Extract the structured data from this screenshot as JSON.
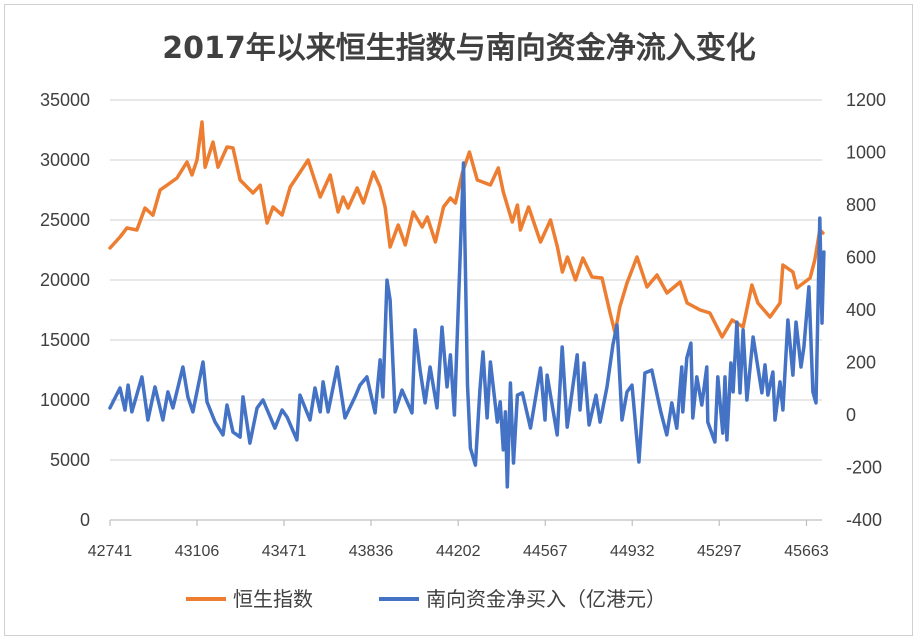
{
  "chart_data": {
    "type": "line",
    "title": "2017年以来恒生指数与南向资金净流入变化",
    "xlabel": "",
    "ylabel": "",
    "x_ticks": [
      "42741",
      "43106",
      "43471",
      "43836",
      "44202",
      "44567",
      "44932",
      "45297",
      "45663"
    ],
    "xlim": [
      42741,
      45728
    ],
    "y_left": {
      "ticks": [
        "0",
        "5000",
        "10000",
        "15000",
        "20000",
        "25000",
        "30000",
        "35000"
      ],
      "ylim": [
        0,
        35000
      ]
    },
    "y_right": {
      "ticks": [
        "-400",
        "-200",
        "0",
        "200",
        "400",
        "600",
        "800",
        "1000",
        "1200"
      ],
      "ylim": [
        -400,
        1200
      ]
    },
    "grid": true,
    "legend_position": "bottom",
    "series": [
      {
        "name": "恒生指数",
        "axis": "left",
        "color": "#ED7D31",
        "points": [
          [
            42741,
            22670
          ],
          [
            42783,
            23580
          ],
          [
            42812,
            24330
          ],
          [
            42854,
            24170
          ],
          [
            42888,
            26000
          ],
          [
            42921,
            25400
          ],
          [
            42951,
            27500
          ],
          [
            42980,
            27900
          ],
          [
            43022,
            28500
          ],
          [
            43064,
            29830
          ],
          [
            43085,
            28750
          ],
          [
            43106,
            30000
          ],
          [
            43127,
            33170
          ],
          [
            43140,
            29400
          ],
          [
            43173,
            31500
          ],
          [
            43194,
            29400
          ],
          [
            43232,
            31080
          ],
          [
            43257,
            31000
          ],
          [
            43287,
            28330
          ],
          [
            43341,
            27250
          ],
          [
            43371,
            27900
          ],
          [
            43400,
            24750
          ],
          [
            43425,
            26080
          ],
          [
            43463,
            25420
          ],
          [
            43497,
            27750
          ],
          [
            43539,
            29000
          ],
          [
            43572,
            30000
          ],
          [
            43623,
            26920
          ],
          [
            43665,
            28750
          ],
          [
            43698,
            25670
          ],
          [
            43719,
            26920
          ],
          [
            43740,
            26000
          ],
          [
            43778,
            27670
          ],
          [
            43804,
            26420
          ],
          [
            43846,
            29000
          ],
          [
            43874,
            27750
          ],
          [
            43895,
            26080
          ],
          [
            43916,
            22750
          ],
          [
            43950,
            24580
          ],
          [
            43980,
            22920
          ],
          [
            44013,
            25670
          ],
          [
            44051,
            24420
          ],
          [
            44072,
            25250
          ],
          [
            44106,
            23170
          ],
          [
            44140,
            26080
          ],
          [
            44169,
            26830
          ],
          [
            44190,
            26420
          ],
          [
            44219,
            28920
          ],
          [
            44249,
            30670
          ],
          [
            44282,
            28330
          ],
          [
            44337,
            27920
          ],
          [
            44370,
            29330
          ],
          [
            44391,
            27330
          ],
          [
            44429,
            24830
          ],
          [
            44450,
            26250
          ],
          [
            44463,
            24170
          ],
          [
            44497,
            26080
          ],
          [
            44547,
            23170
          ],
          [
            44589,
            25000
          ],
          [
            44618,
            22750
          ],
          [
            44639,
            20670
          ],
          [
            44660,
            21920
          ],
          [
            44694,
            20000
          ],
          [
            44725,
            21830
          ],
          [
            44763,
            20250
          ],
          [
            44805,
            20170
          ],
          [
            44839,
            17250
          ],
          [
            44860,
            15580
          ],
          [
            44880,
            17750
          ],
          [
            44910,
            19750
          ],
          [
            44952,
            21920
          ],
          [
            44994,
            19420
          ],
          [
            45036,
            20420
          ],
          [
            45078,
            18920
          ],
          [
            45133,
            19830
          ],
          [
            45162,
            18080
          ],
          [
            45217,
            17500
          ],
          [
            45258,
            17250
          ],
          [
            45309,
            15250
          ],
          [
            45351,
            16670
          ],
          [
            45397,
            16080
          ],
          [
            45434,
            19580
          ],
          [
            45459,
            18080
          ],
          [
            45510,
            16920
          ],
          [
            45552,
            18080
          ],
          [
            45564,
            21250
          ],
          [
            45606,
            20670
          ],
          [
            45623,
            19330
          ],
          [
            45678,
            20170
          ],
          [
            45698,
            21670
          ],
          [
            45719,
            24170
          ],
          [
            45732,
            23920
          ]
        ]
      },
      {
        "name": "南向资金净买入（亿港元）",
        "axis": "right",
        "color": "#4472C4",
        "points": [
          [
            42741,
            27
          ],
          [
            42783,
            103
          ],
          [
            42804,
            19
          ],
          [
            42817,
            114
          ],
          [
            42833,
            12
          ],
          [
            42875,
            145
          ],
          [
            42900,
            -19
          ],
          [
            42930,
            107
          ],
          [
            42963,
            -19
          ],
          [
            42984,
            88
          ],
          [
            43005,
            27
          ],
          [
            43047,
            183
          ],
          [
            43068,
            69
          ],
          [
            43089,
            12
          ],
          [
            43131,
            202
          ],
          [
            43148,
            50
          ],
          [
            43182,
            -27
          ],
          [
            43215,
            -76
          ],
          [
            43232,
            38
          ],
          [
            43257,
            -65
          ],
          [
            43287,
            -84
          ],
          [
            43299,
            69
          ],
          [
            43328,
            -107
          ],
          [
            43358,
            27
          ],
          [
            43383,
            57
          ],
          [
            43433,
            -50
          ],
          [
            43463,
            19
          ],
          [
            43484,
            -8
          ],
          [
            43525,
            -95
          ],
          [
            43538,
            76
          ],
          [
            43580,
            -19
          ],
          [
            43601,
            103
          ],
          [
            43623,
            12
          ],
          [
            43635,
            126
          ],
          [
            43656,
            12
          ],
          [
            43694,
            183
          ],
          [
            43727,
            -11
          ],
          [
            43769,
            69
          ],
          [
            43790,
            114
          ],
          [
            43819,
            145
          ],
          [
            43853,
            8
          ],
          [
            43874,
            210
          ],
          [
            43886,
            69
          ],
          [
            43903,
            514
          ],
          [
            43916,
            438
          ],
          [
            43937,
            12
          ],
          [
            43966,
            95
          ],
          [
            44008,
            8
          ],
          [
            44021,
            324
          ],
          [
            44042,
            171
          ],
          [
            44063,
            46
          ],
          [
            44084,
            183
          ],
          [
            44113,
            27
          ],
          [
            44134,
            335
          ],
          [
            44155,
            107
          ],
          [
            44169,
            229
          ],
          [
            44186,
            0
          ],
          [
            44224,
            960
          ],
          [
            44241,
            114
          ],
          [
            44253,
            -126
          ],
          [
            44274,
            -191
          ],
          [
            44293,
            95
          ],
          [
            44306,
            240
          ],
          [
            44323,
            -11
          ],
          [
            44337,
            202
          ],
          [
            44366,
            -27
          ],
          [
            44378,
            50
          ],
          [
            44391,
            -133
          ],
          [
            44400,
            12
          ],
          [
            44408,
            -274
          ],
          [
            44421,
            122
          ],
          [
            44434,
            -183
          ],
          [
            44450,
            76
          ],
          [
            44471,
            84
          ],
          [
            44505,
            -50
          ],
          [
            44547,
            179
          ],
          [
            44566,
            -19
          ],
          [
            44575,
            152
          ],
          [
            44617,
            -76
          ],
          [
            44638,
            259
          ],
          [
            44659,
            -46
          ],
          [
            44701,
            229
          ],
          [
            44713,
            19
          ],
          [
            44730,
            198
          ],
          [
            44751,
            -38
          ],
          [
            44780,
            76
          ],
          [
            44797,
            -27
          ],
          [
            44826,
            107
          ],
          [
            44851,
            267
          ],
          [
            44868,
            343
          ],
          [
            44889,
            -19
          ],
          [
            44910,
            88
          ],
          [
            44931,
            114
          ],
          [
            44960,
            -179
          ],
          [
            44985,
            160
          ],
          [
            45014,
            171
          ],
          [
            45052,
            12
          ],
          [
            45077,
            -76
          ],
          [
            45098,
            46
          ],
          [
            45119,
            -50
          ],
          [
            45140,
            183
          ],
          [
            45144,
            12
          ],
          [
            45161,
            217
          ],
          [
            45178,
            274
          ],
          [
            45186,
            -11
          ],
          [
            45203,
            145
          ],
          [
            45224,
            38
          ],
          [
            45245,
            183
          ],
          [
            45249,
            -27
          ],
          [
            45279,
            -103
          ],
          [
            45291,
            145
          ],
          [
            45312,
            -69
          ],
          [
            45321,
            145
          ],
          [
            45329,
            -95
          ],
          [
            45346,
            198
          ],
          [
            45355,
            88
          ],
          [
            45371,
            354
          ],
          [
            45384,
            84
          ],
          [
            45397,
            324
          ],
          [
            45413,
            57
          ],
          [
            45439,
            297
          ],
          [
            45476,
            84
          ],
          [
            45489,
            191
          ],
          [
            45501,
            76
          ],
          [
            45522,
            164
          ],
          [
            45531,
            -19
          ],
          [
            45552,
            126
          ],
          [
            45564,
            19
          ],
          [
            45585,
            362
          ],
          [
            45606,
            152
          ],
          [
            45619,
            354
          ],
          [
            45640,
            183
          ],
          [
            45652,
            259
          ],
          [
            45673,
            488
          ],
          [
            45690,
            88
          ],
          [
            45703,
            46
          ],
          [
            45719,
            750
          ],
          [
            45728,
            350
          ],
          [
            45736,
            621
          ]
        ]
      }
    ]
  }
}
